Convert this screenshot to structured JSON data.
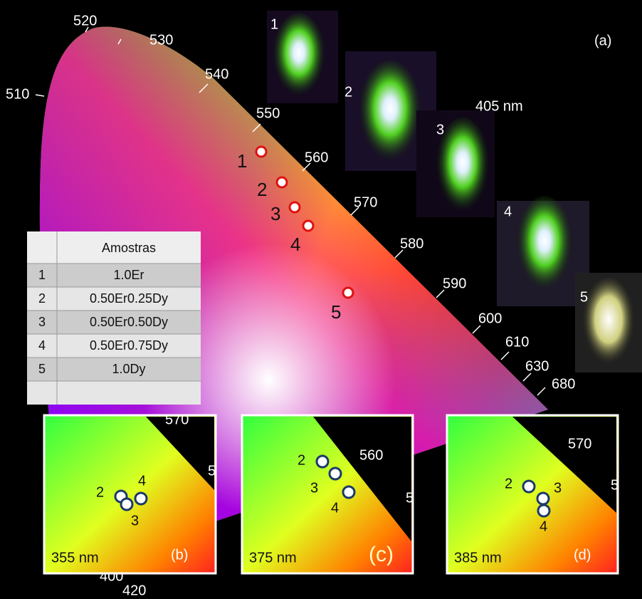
{
  "panel_label": "(a)",
  "excitation": "405 nm",
  "wavelengths": [
    "510",
    "520",
    "530",
    "540",
    "550",
    "560",
    "570",
    "580",
    "590",
    "600",
    "610",
    "630",
    "680",
    "400",
    "420"
  ],
  "points": [
    "1",
    "2",
    "3",
    "4",
    "5"
  ],
  "photos": [
    "1",
    "2",
    "3",
    "4",
    "5"
  ],
  "table": {
    "header": "Amostras",
    "rows": [
      [
        "1",
        "1.0Er"
      ],
      [
        "2",
        "0.50Er0.25Dy"
      ],
      [
        "3",
        "0.50Er0.50Dy"
      ],
      [
        "4",
        "0.50Er0.75Dy"
      ],
      [
        "5",
        "1.0Dy"
      ]
    ]
  },
  "insets": [
    {
      "label": "(b)",
      "excitation": "355 nm",
      "points": [
        "2",
        "4",
        "3"
      ],
      "ticks": [
        "570",
        "5"
      ]
    },
    {
      "label": "(c)",
      "excitation": "375 nm",
      "points": [
        "2",
        "3",
        "4"
      ],
      "ticks": [
        "560",
        "5"
      ]
    },
    {
      "label": "(d)",
      "excitation": "385 nm",
      "points": [
        "2",
        "3",
        "4"
      ],
      "ticks": [
        "570",
        "5"
      ]
    }
  ]
}
